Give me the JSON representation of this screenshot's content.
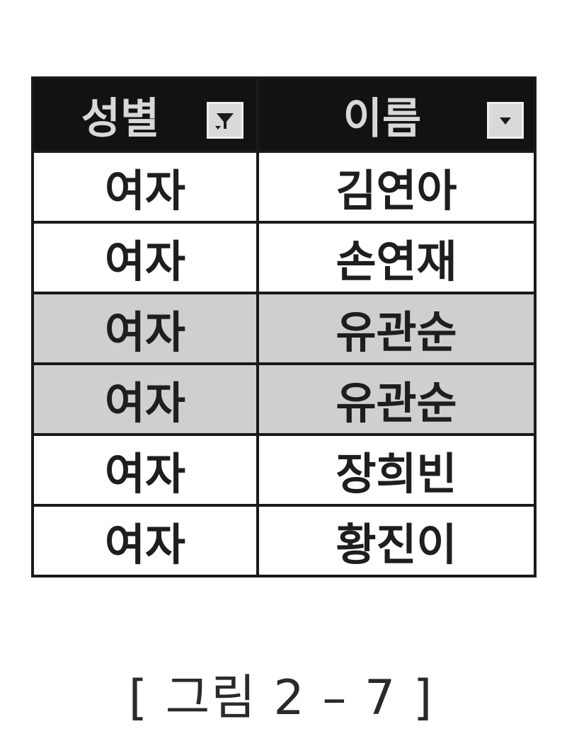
{
  "table": {
    "headers": [
      {
        "label": "성별",
        "filter_icon": "filter-active-icon"
      },
      {
        "label": "이름",
        "filter_icon": "dropdown-arrow-icon"
      }
    ],
    "rows": [
      {
        "gender": "여자",
        "name": "김연아",
        "highlighted": false
      },
      {
        "gender": "여자",
        "name": "손연재",
        "highlighted": false
      },
      {
        "gender": "여자",
        "name": "유관순",
        "highlighted": true
      },
      {
        "gender": "여자",
        "name": "유관순",
        "highlighted": true
      },
      {
        "gender": "여자",
        "name": "장희빈",
        "highlighted": false
      },
      {
        "gender": "여자",
        "name": "황진이",
        "highlighted": false
      }
    ]
  },
  "caption": "[ 그림 2 – 7 ]",
  "colors": {
    "header_bg": "#121212",
    "highlight_bg": "#cfcfcf",
    "border": "#1a1a1a"
  }
}
